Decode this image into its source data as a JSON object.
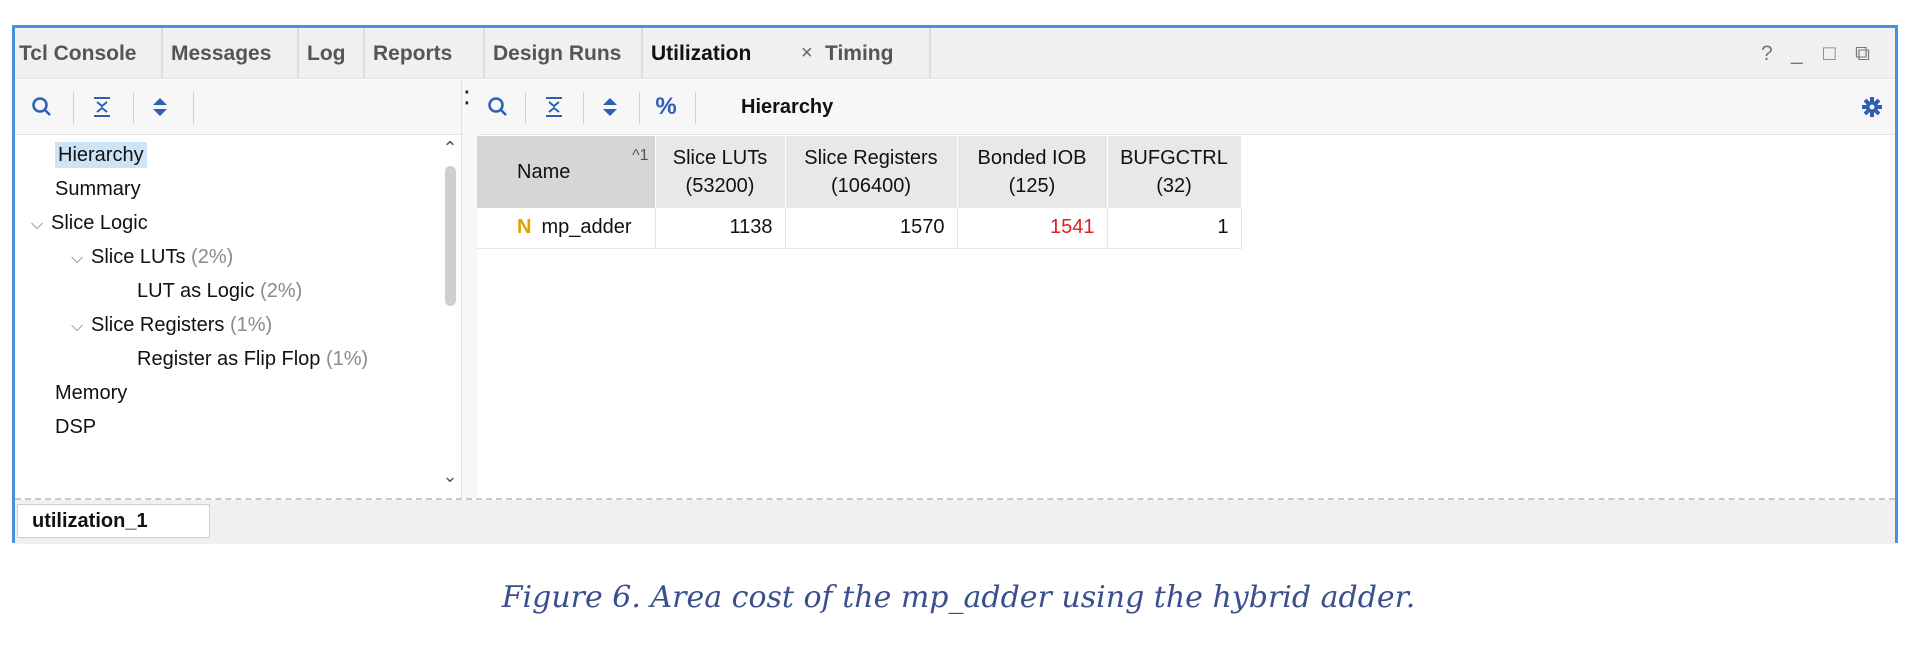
{
  "tabs": [
    {
      "label": "Tcl Console"
    },
    {
      "label": "Messages"
    },
    {
      "label": "Log"
    },
    {
      "label": "Reports"
    },
    {
      "label": "Design Runs"
    },
    {
      "label": "Utilization",
      "active": true
    },
    {
      "label": "Timing"
    }
  ],
  "window_controls": {
    "help": "?",
    "minimize": "_",
    "maximize": "□",
    "restore": "⧉"
  },
  "left_toolbar": {
    "search": "search-icon",
    "collapse": "collapse-all-icon",
    "expand": "expand-all-icon"
  },
  "right_toolbar": {
    "percent": "%",
    "title": "Hierarchy"
  },
  "tree": {
    "items": [
      {
        "label": "Hierarchy",
        "pct": ""
      },
      {
        "label": "Summary",
        "pct": ""
      },
      {
        "label": "Slice Logic",
        "pct": ""
      },
      {
        "label": "Slice LUTs",
        "pct": "(2%)"
      },
      {
        "label": "LUT as Logic",
        "pct": "(2%)"
      },
      {
        "label": "Slice Registers",
        "pct": "(1%)"
      },
      {
        "label": "Register as Flip Flop",
        "pct": "(1%)"
      },
      {
        "label": "Memory",
        "pct": ""
      },
      {
        "label": "DSP",
        "pct": ""
      }
    ]
  },
  "table": {
    "headers": [
      {
        "line1": "Name",
        "line2": "",
        "sort": "1"
      },
      {
        "line1": "Slice LUTs",
        "line2": "(53200)"
      },
      {
        "line1": "Slice Registers",
        "line2": "(106400)"
      },
      {
        "line1": "Bonded IOB",
        "line2": "(125)"
      },
      {
        "line1": "BUFGCTRL",
        "line2": "(32)"
      }
    ],
    "rows": [
      {
        "icon": "N",
        "name": "mp_adder",
        "luts": "1138",
        "regs": "1570",
        "iob": "1541",
        "bufg": "1"
      }
    ],
    "highlight_color": "#e02020"
  },
  "bottom_tab": {
    "label": "utilization_1"
  },
  "caption": "Figure 6. Area cost of the mp_adder using the hybrid adder."
}
